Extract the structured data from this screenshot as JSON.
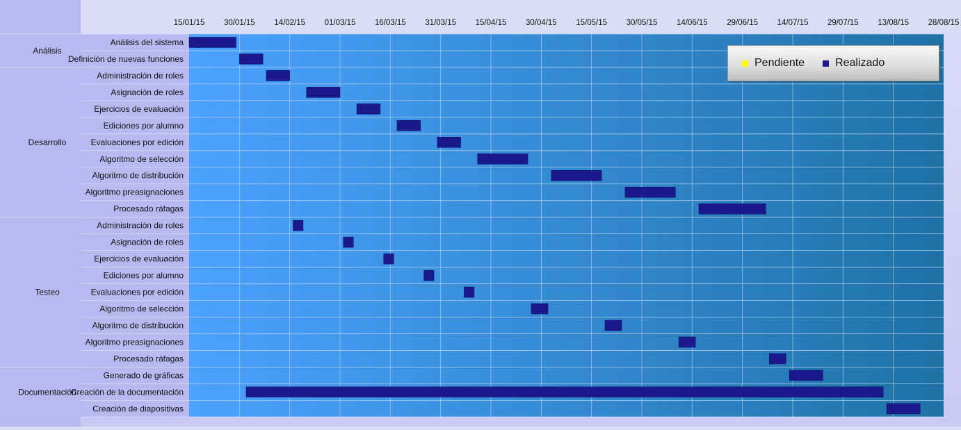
{
  "chart_data": {
    "type": "gantt",
    "x_ticks": [
      "15/01/15",
      "30/01/15",
      "14/02/15",
      "01/03/15",
      "16/03/15",
      "31/03/15",
      "15/04/15",
      "30/04/15",
      "15/05/15",
      "30/05/15",
      "14/06/15",
      "29/06/15",
      "14/07/15",
      "29/07/15",
      "13/08/15",
      "28/08/15"
    ],
    "xlim": [
      "2015-01-15",
      "2015-08-28"
    ],
    "groups": [
      {
        "name": "Análisis",
        "tasks": [
          {
            "label": "Análisis del sistema",
            "start": "2015-01-15",
            "end": "2015-01-29"
          },
          {
            "label": "Definición de nuevas funciones",
            "start": "2015-01-30",
            "end": "2015-02-06"
          }
        ]
      },
      {
        "name": "Desarrollo",
        "tasks": [
          {
            "label": "Administración de roles",
            "start": "2015-02-07",
            "end": "2015-02-14"
          },
          {
            "label": "Asignación de roles",
            "start": "2015-02-19",
            "end": "2015-03-01"
          },
          {
            "label": "Ejercicios de evaluación",
            "start": "2015-03-06",
            "end": "2015-03-13"
          },
          {
            "label": "Ediciones por alumno",
            "start": "2015-03-18",
            "end": "2015-03-25"
          },
          {
            "label": "Evaluaciones por edición",
            "start": "2015-03-30",
            "end": "2015-04-06"
          },
          {
            "label": "Algoritmo de selección",
            "start": "2015-04-11",
            "end": "2015-04-26"
          },
          {
            "label": "Algoritmo de distribución",
            "start": "2015-05-03",
            "end": "2015-05-18"
          },
          {
            "label": "Algoritmo preasignaciones",
            "start": "2015-05-25",
            "end": "2015-06-09"
          },
          {
            "label": "Procesado ráfagas",
            "start": "2015-06-16",
            "end": "2015-07-06"
          }
        ]
      },
      {
        "name": "Testeo",
        "tasks": [
          {
            "label": "Administración de roles",
            "start": "2015-02-15",
            "end": "2015-02-18"
          },
          {
            "label": "Asignación de roles",
            "start": "2015-03-02",
            "end": "2015-03-05"
          },
          {
            "label": "Ejercicios de evaluación",
            "start": "2015-03-14",
            "end": "2015-03-17"
          },
          {
            "label": "Ediciones por alumno",
            "start": "2015-03-26",
            "end": "2015-03-29"
          },
          {
            "label": "Evaluaciones por edición",
            "start": "2015-04-07",
            "end": "2015-04-10"
          },
          {
            "label": "Algoritmo de selección",
            "start": "2015-04-27",
            "end": "2015-05-02"
          },
          {
            "label": "Algoritmo de distribución",
            "start": "2015-05-19",
            "end": "2015-05-24"
          },
          {
            "label": "Algoritmo preasignaciones",
            "start": "2015-06-10",
            "end": "2015-06-15"
          },
          {
            "label": "Procesado ráfagas",
            "start": "2015-07-07",
            "end": "2015-07-12"
          }
        ]
      },
      {
        "name": "Documentación",
        "tasks": [
          {
            "label": "Generado de gráficas",
            "start": "2015-07-13",
            "end": "2015-07-23"
          },
          {
            "label": "Creación de la documentación",
            "start": "2015-02-01",
            "end": "2015-08-10"
          },
          {
            "label": "Creación de diapositivas",
            "start": "2015-08-11",
            "end": "2015-08-21"
          }
        ]
      }
    ],
    "legend": {
      "position": "top-right",
      "entries": [
        {
          "label": "Pendiente",
          "color": "#ffff00"
        },
        {
          "label": "Realizado",
          "color": "#1a1a8c"
        }
      ]
    },
    "bar_color": "#1a1a8c",
    "grid": true
  },
  "colors": {
    "plot_start": "#4aa2ff",
    "plot_end": "#1f72a6",
    "grid": "#b9d3ea",
    "label_bg": "#b9b9f2",
    "header_bg": "#dcdcf8"
  }
}
